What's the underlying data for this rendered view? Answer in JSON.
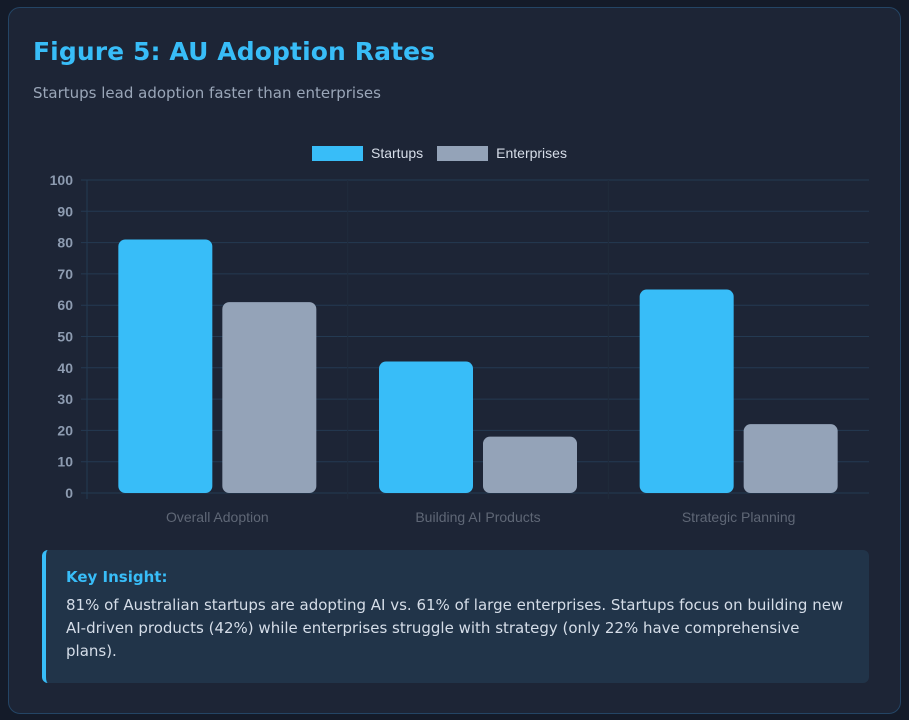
{
  "header": {
    "title": "Figure 5: AU Adoption Rates",
    "subtitle": "Startups lead adoption faster than enterprises"
  },
  "colors": {
    "accent": "#38bdf8",
    "startups": "#38bdf8",
    "enterprises": "#94a3b8",
    "grid": "#243a52",
    "card_background": "#1d2536",
    "insight_background": "#213449"
  },
  "chart_data": {
    "type": "bar",
    "title": "Figure 5: AU Adoption Rates",
    "subtitle": "Startups lead adoption faster than enterprises",
    "categories": [
      "Overall Adoption",
      "Building AI Products",
      "Strategic Planning"
    ],
    "series": [
      {
        "name": "Startups",
        "color": "#38bdf8",
        "values": [
          81,
          42,
          65
        ]
      },
      {
        "name": "Enterprises",
        "color": "#94a3b8",
        "values": [
          61,
          18,
          22
        ]
      }
    ],
    "xlabel": "",
    "ylabel": "",
    "ylim": [
      0,
      100
    ],
    "yticks": [
      0,
      10,
      20,
      30,
      40,
      50,
      60,
      70,
      80,
      90,
      100
    ],
    "grid": true,
    "legend_position": "top-center"
  },
  "insight": {
    "title": "Key Insight:",
    "text": "81% of Australian startups are adopting AI vs. 61% of large enterprises. Startups focus on building new AI-driven products (42%) while enterprises struggle with strategy (only 22% have comprehensive plans)."
  }
}
